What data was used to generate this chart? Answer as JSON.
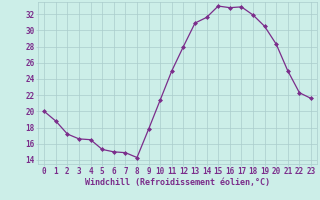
{
  "x": [
    0,
    1,
    2,
    3,
    4,
    5,
    6,
    7,
    8,
    9,
    10,
    11,
    12,
    13,
    14,
    15,
    16,
    17,
    18,
    19,
    20,
    21,
    22,
    23
  ],
  "y": [
    20.0,
    18.8,
    17.2,
    16.6,
    16.5,
    15.3,
    15.0,
    14.9,
    14.3,
    17.8,
    21.4,
    25.0,
    28.0,
    30.9,
    31.6,
    33.0,
    32.8,
    32.9,
    31.9,
    30.5,
    28.3,
    25.0,
    22.3,
    21.6
  ],
  "line_color": "#7b2d8b",
  "marker": "D",
  "marker_size": 2.0,
  "bg_color": "#cceee8",
  "grid_color": "#aacccc",
  "xlabel": "Windchill (Refroidissement éolien,°C)",
  "xlabel_color": "#7b2d8b",
  "tick_color": "#7b2d8b",
  "ylim": [
    13.5,
    33.5
  ],
  "xlim": [
    -0.5,
    23.5
  ],
  "yticks": [
    14,
    16,
    18,
    20,
    22,
    24,
    26,
    28,
    30,
    32
  ],
  "xticks": [
    0,
    1,
    2,
    3,
    4,
    5,
    6,
    7,
    8,
    9,
    10,
    11,
    12,
    13,
    14,
    15,
    16,
    17,
    18,
    19,
    20,
    21,
    22,
    23
  ],
  "tick_fontsize": 5.5,
  "xlabel_fontsize": 6.0
}
